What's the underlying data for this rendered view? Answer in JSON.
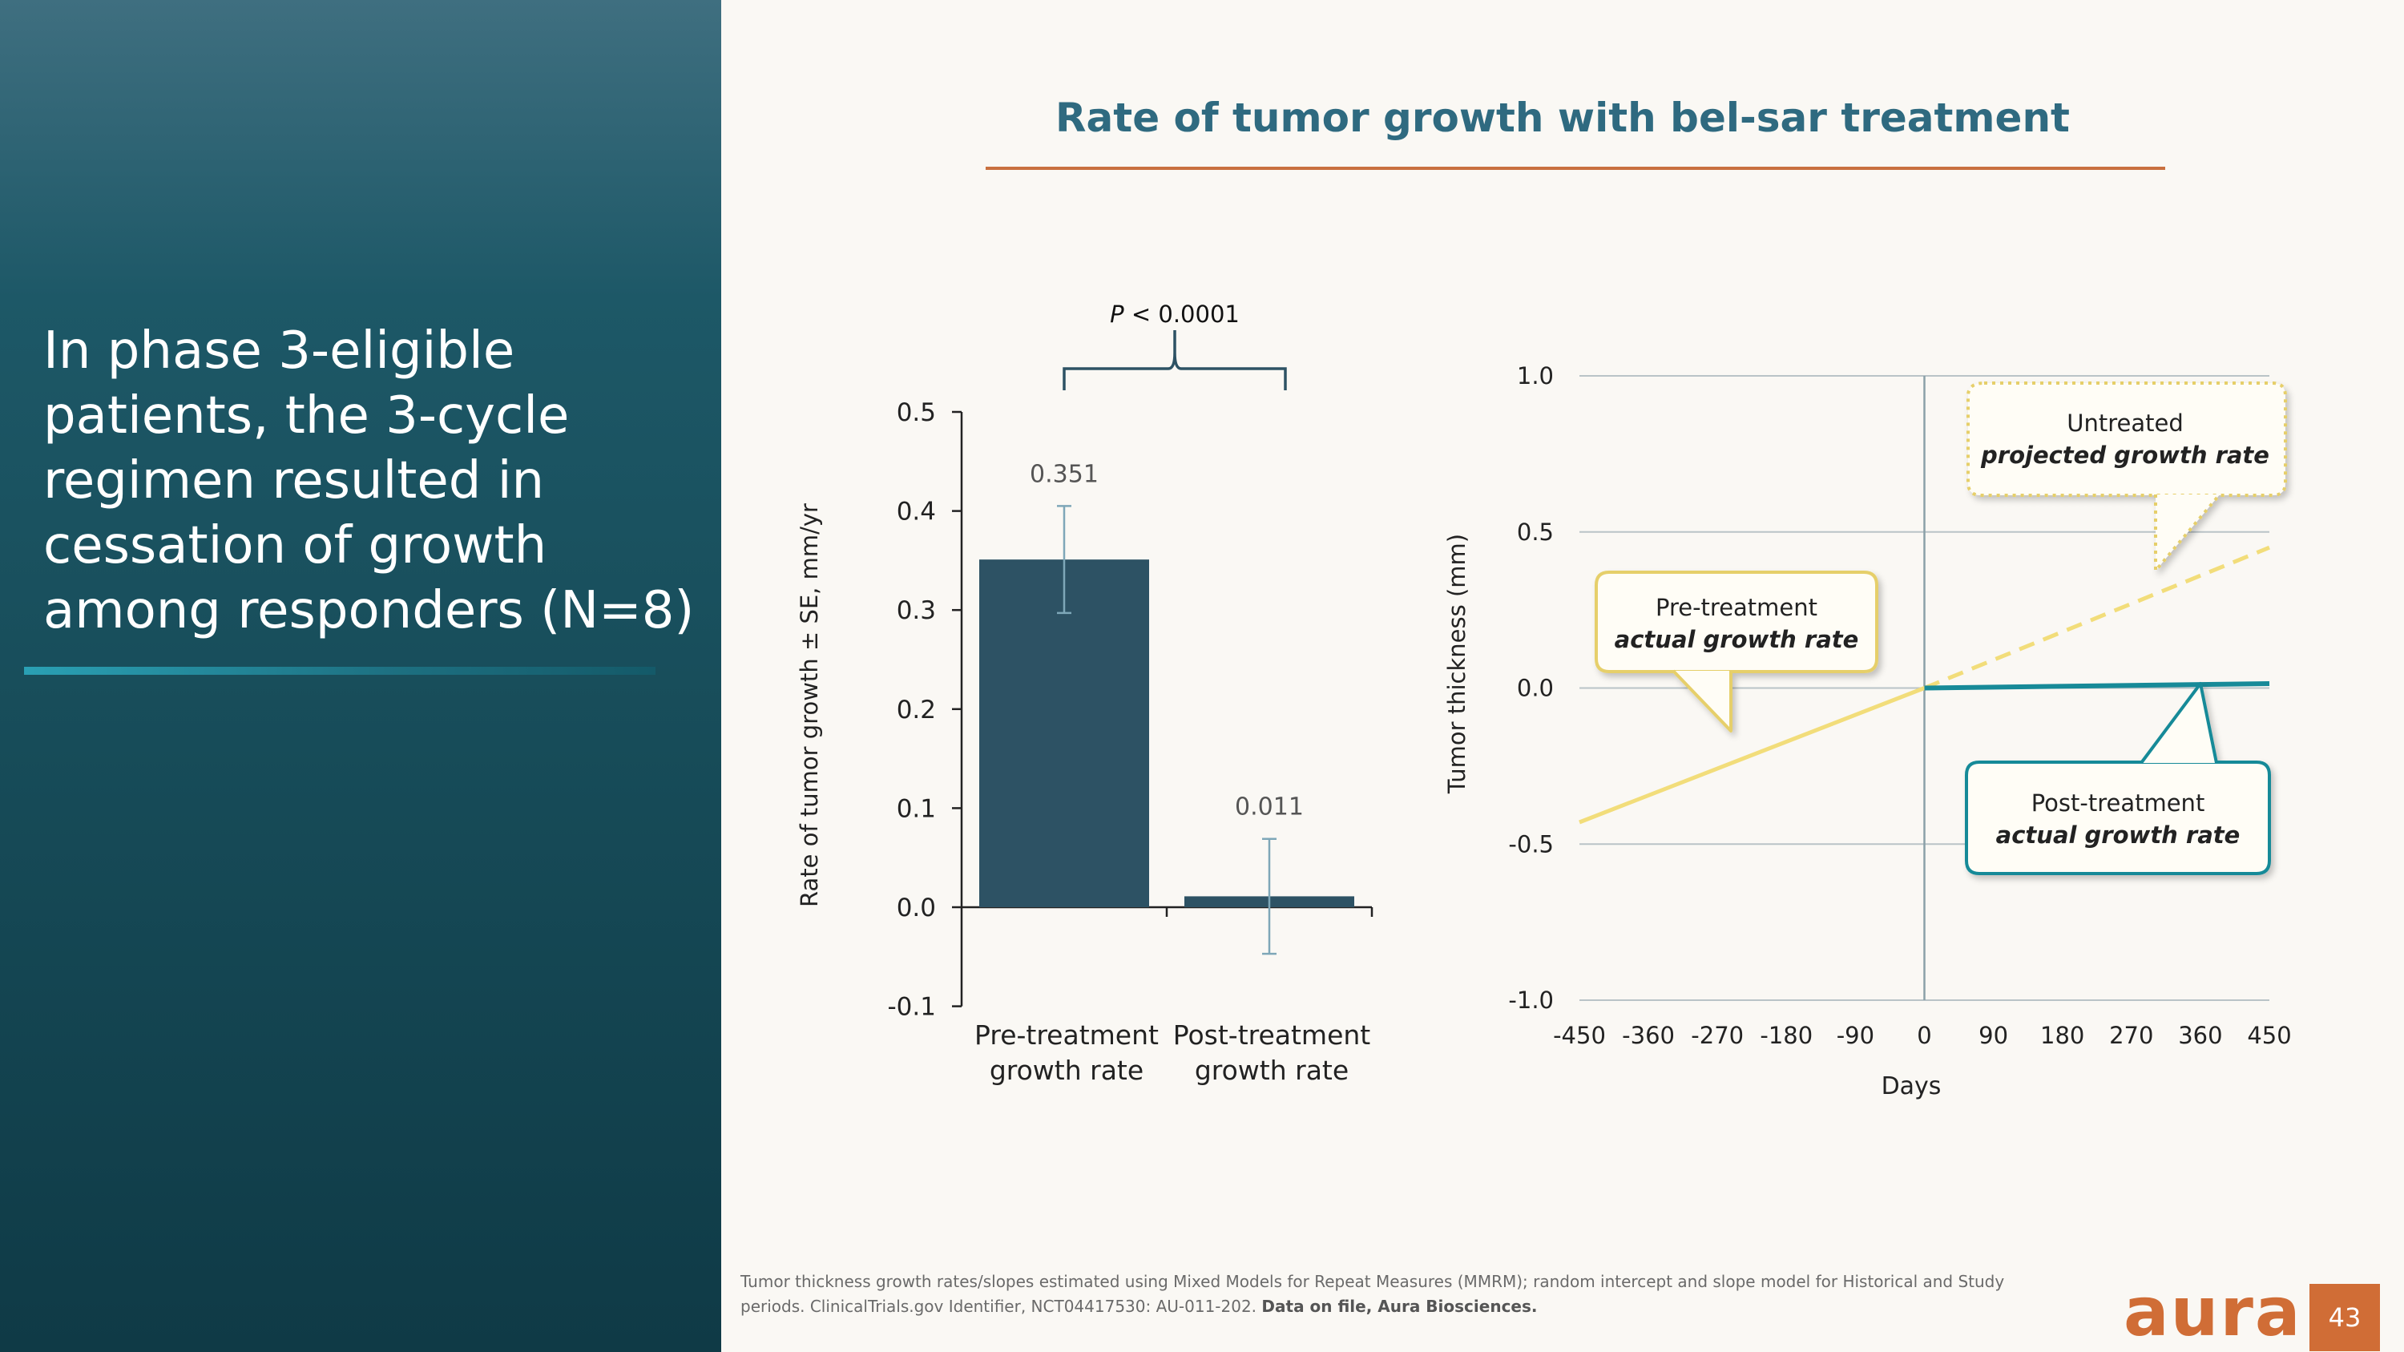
{
  "slide": {
    "heading": "In phase 3-eligible patients, the 3-cycle regimen resulted in cessation of growth among responders (N=8)",
    "title": "Rate of tumor growth with bel-sar treatment",
    "footnote_text": "Tumor thickness growth rates/slopes estimated using Mixed Models for Repeat Measures (MMRM); random intercept and slope model for Historical and Study periods. ClinicalTrials.gov Identifier, NCT04417530: AU-011-202. ",
    "footnote_bold": "Data on file, Aura Biosciences.",
    "logo": "aura",
    "page_number": "43",
    "colors": {
      "panel": "#1d5867",
      "title": "#2f6a80",
      "accent": "#c9703f",
      "bar": "#2d5264",
      "pre_line": "#f2dd7a",
      "post_line": "#178a98"
    }
  },
  "chart_data": [
    {
      "type": "bar",
      "categories": [
        "Pre-treatment growth rate",
        "Post-treatment growth rate"
      ],
      "category_lines": [
        [
          "Pre-treatment",
          "growth rate"
        ],
        [
          "Post-treatment",
          "growth rate"
        ]
      ],
      "values": [
        0.351,
        0.011
      ],
      "value_labels": [
        "0.351",
        "0.011"
      ],
      "error_low": [
        0.297,
        -0.047
      ],
      "error_high": [
        0.405,
        0.069
      ],
      "ylabel": "Rate of tumor growth ± SE, mm/yr",
      "ylim": [
        -0.1,
        0.5
      ],
      "yticks": [
        -0.1,
        0.0,
        0.1,
        0.2,
        0.3,
        0.4,
        0.5
      ],
      "ytick_labels": [
        "-0.1",
        "0.0",
        "0.1",
        "0.2",
        "0.3",
        "0.4",
        "0.5"
      ],
      "annotation": {
        "p_italic": "P",
        "p_rest": " < 0.0001"
      },
      "colors": {
        "bar": "#2d5264",
        "error": "#7ea7b8"
      }
    },
    {
      "type": "line",
      "xlabel": "Days",
      "ylabel": "Tumor  thickness (mm)",
      "xlim": [
        -450,
        450
      ],
      "ylim": [
        -1.0,
        1.0
      ],
      "xticks": [
        -450,
        -360,
        -270,
        -180,
        -90,
        0,
        90,
        180,
        270,
        360,
        450
      ],
      "xtick_labels": [
        "-450",
        "-360",
        "-270",
        "-180",
        "-90",
        "0",
        "90",
        "180",
        "270",
        "360",
        "450"
      ],
      "yticks": [
        -1.0,
        -0.5,
        0.0,
        0.5,
        1.0
      ],
      "ytick_labels": [
        "-1.0",
        "-0.5",
        "0.0",
        "0.5",
        "1.0"
      ],
      "grid": true,
      "series": [
        {
          "key": "pre",
          "style": "solid",
          "color": "#f2dd7a",
          "x": [
            -450,
            0
          ],
          "y": [
            -0.43,
            0.0
          ]
        },
        {
          "key": "projected",
          "style": "dashed",
          "color": "#f2dd7a",
          "x": [
            0,
            450
          ],
          "y": [
            0.0,
            0.45
          ]
        },
        {
          "key": "post",
          "style": "solid",
          "color": "#178a98",
          "x": [
            0,
            450
          ],
          "y": [
            0.0,
            0.014
          ]
        }
      ],
      "callouts": {
        "untreated": {
          "line1": "Untreated",
          "line2": "projected growth rate"
        },
        "pre": {
          "line1": "Pre-treatment",
          "line2": "actual growth rate"
        },
        "post": {
          "line1": "Post-treatment",
          "line2": "actual growth rate"
        }
      }
    }
  ]
}
